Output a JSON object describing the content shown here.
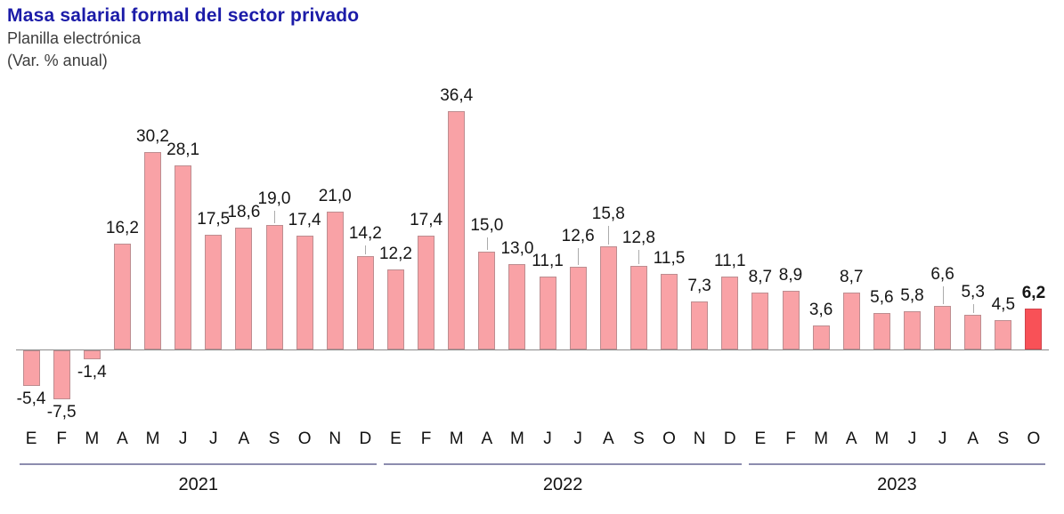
{
  "header": {
    "title": "Masa salarial formal del sector privado",
    "subtitle": "Planilla electrónica",
    "unit_note": "(Var. % anual)"
  },
  "chart_data": {
    "type": "bar",
    "title": "Masa salarial formal del sector privado",
    "subtitle": "Planilla electrónica",
    "ylabel": "Var. % anual",
    "ylim": [
      -10,
      40
    ],
    "grid": false,
    "groups": [
      {
        "year": "2021",
        "months": [
          "E",
          "F",
          "M",
          "A",
          "M",
          "J",
          "J",
          "A",
          "S",
          "O",
          "N",
          "D"
        ],
        "values": [
          -5.4,
          -7.5,
          -1.4,
          16.2,
          30.2,
          28.1,
          17.5,
          18.6,
          19.0,
          17.4,
          21.0,
          14.2
        ],
        "labels": [
          "-5,4",
          "-7,5",
          "-1,4",
          "16,2",
          "30,2",
          "28,1",
          "17,5",
          "18,6",
          "19,0",
          "17,4",
          "21,0",
          "14,2"
        ]
      },
      {
        "year": "2022",
        "months": [
          "E",
          "F",
          "M",
          "A",
          "M",
          "J",
          "J",
          "A",
          "S",
          "O",
          "N",
          "D"
        ],
        "values": [
          12.2,
          17.4,
          36.4,
          15.0,
          13.0,
          11.1,
          12.6,
          15.8,
          12.8,
          11.5,
          7.3,
          11.1
        ],
        "labels": [
          "12,2",
          "17,4",
          "36,4",
          "15,0",
          "13,0",
          "11,1",
          "12,6",
          "15,8",
          "12,8",
          "11,5",
          "7,3",
          "11,1"
        ]
      },
      {
        "year": "2023",
        "months": [
          "E",
          "F",
          "M",
          "A",
          "M",
          "J",
          "J",
          "A",
          "S",
          "O"
        ],
        "values": [
          8.7,
          8.9,
          3.6,
          8.7,
          5.6,
          5.8,
          6.6,
          5.3,
          4.5,
          6.2
        ],
        "labels": [
          "8,7",
          "8,9",
          "3,6",
          "8,7",
          "5,6",
          "5,8",
          "6,6",
          "5,3",
          "4,5",
          "6,2"
        ]
      }
    ],
    "highlight": {
      "year": "2023",
      "month": "O",
      "label": "6,2"
    },
    "label_raise": {
      "8": 20,
      "11": 16,
      "15": 20,
      "18": 25,
      "19": 27,
      "20": 22,
      "30": 26,
      "31": 16
    },
    "colors": {
      "bar_fill": "#f9a2a6",
      "bar_border": "#bd8d90",
      "highlight_fill": "#f85157",
      "highlight_border": "#cf444c",
      "axis": "#8a8a8a",
      "year_rule": "#8c8cae",
      "title": "#1b1ba8",
      "subtitle_text": "#3d3d3d",
      "label_text": "#151515"
    }
  }
}
